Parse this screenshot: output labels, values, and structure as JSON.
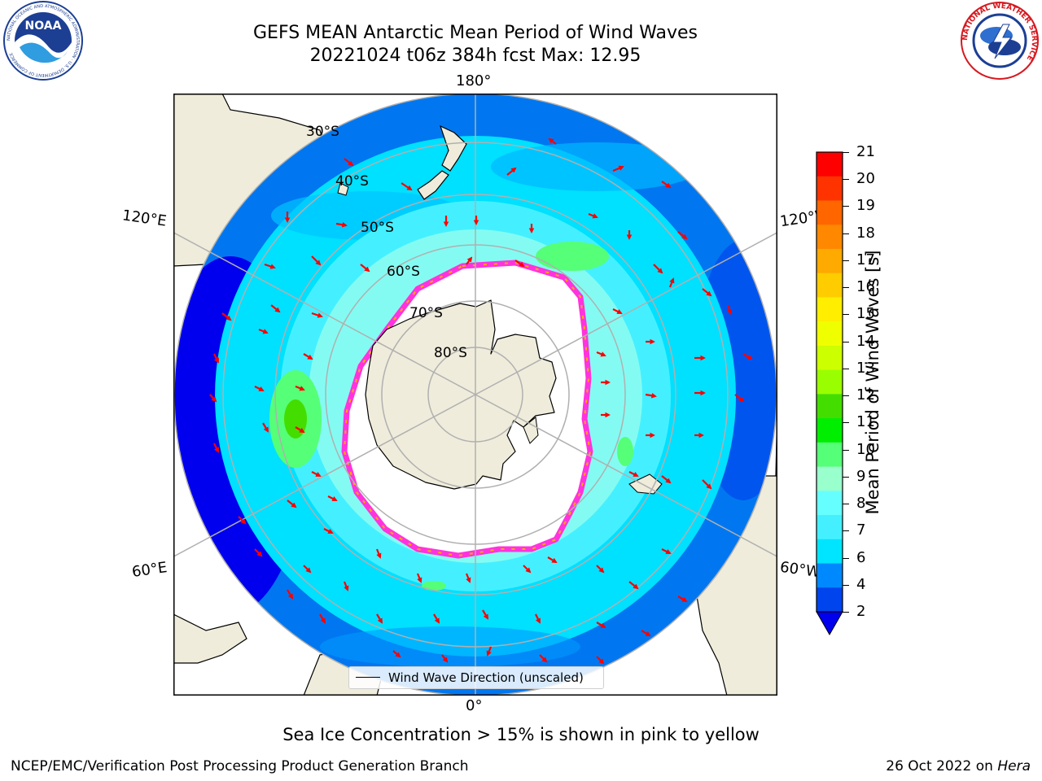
{
  "header": {
    "title_line1": "GEFS MEAN Antarctic Mean Period of Wind Waves",
    "title_line2": "20221024 t06z 384h fcst   Max: 12.95"
  },
  "logos": {
    "left_text": "NOAA",
    "left_ring_text": "NATIONAL OCEANIC AND ATMOSPHERIC ADMINISTRATION · U.S. DEPARTMENT OF COMMERCE",
    "right_ring_text": "NATIONAL WEATHER SERVICE"
  },
  "map": {
    "longitude_labels": {
      "top": "180°",
      "bottom": "0°",
      "upper_left": "120°E",
      "lower_left": "60°E",
      "upper_right": "120°W",
      "lower_right": "60°W"
    },
    "latitude_labels": [
      "30°S",
      "40°S",
      "50°S",
      "60°S",
      "70°S",
      "80°S"
    ],
    "legend": "Wind Wave Direction (unscaled)",
    "colors": {
      "land": "#efecdb",
      "ice": "#ffffff",
      "ice_edge": "#ff33dd",
      "arrow": "#ff0000",
      "grid": "#b0b0b0"
    }
  },
  "colorbar": {
    "label": "Mean Period of Wind Waves [s]",
    "ticks": [
      "21",
      "20",
      "19",
      "18",
      "17",
      "16",
      "15",
      "14",
      "13",
      "12",
      "11",
      "10",
      "9",
      "8",
      "7",
      "6",
      "4",
      "2"
    ],
    "colors": [
      "#ff0000",
      "#ff3300",
      "#ff6600",
      "#ff8800",
      "#ffaa00",
      "#ffcc00",
      "#ffee00",
      "#f0ff00",
      "#ccff00",
      "#99ff00",
      "#44dd00",
      "#00ee00",
      "#55ff77",
      "#99ffcc",
      "#66ffff",
      "#44f0ff",
      "#00e5ff",
      "#0088ff",
      "#0044ee"
    ],
    "under_color": "#0000ee"
  },
  "footer": {
    "note": "Sea Ice Concentration > 15% is shown in pink to yellow",
    "left": "NCEP/EMC/Verification Post Processing Product Generation Branch",
    "right_prefix": "26 Oct 2022 on ",
    "right_host": "Hera"
  }
}
